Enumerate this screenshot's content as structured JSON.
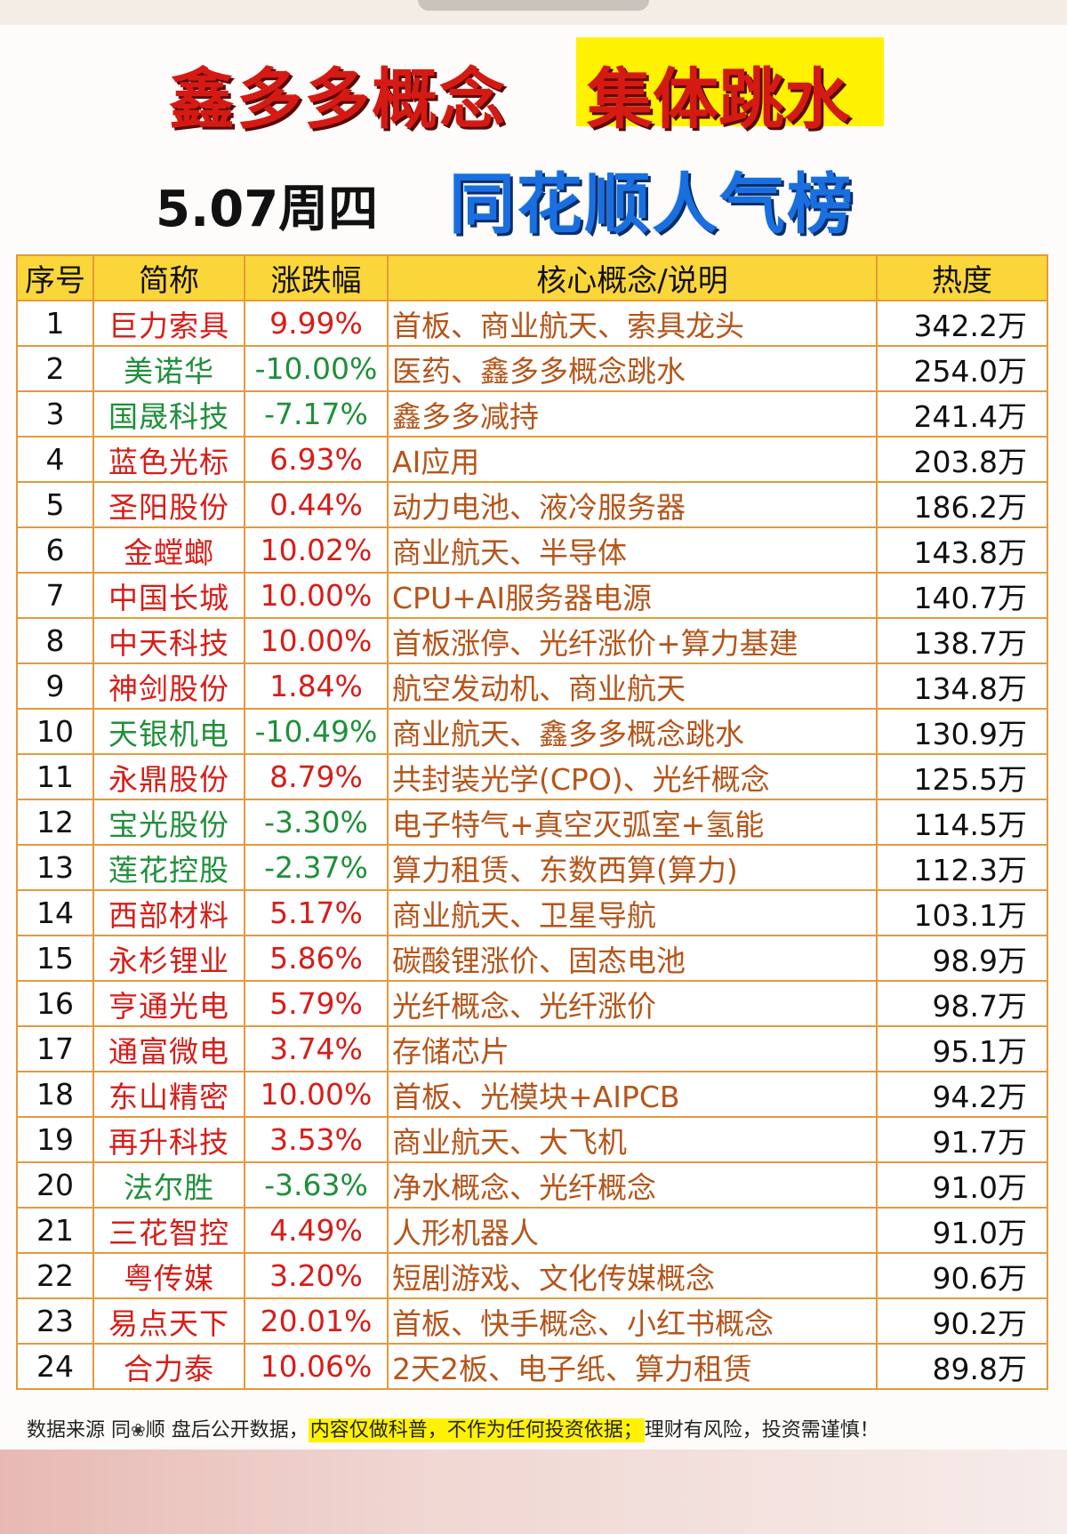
{
  "title": {
    "part1": "鑫多多概念",
    "part2": "集体跳水",
    "date": "5.07周四",
    "board": "同花顺人气榜"
  },
  "table": {
    "headers": [
      "序号",
      "简称",
      "涨跌幅",
      "核心概念/说明",
      "热度"
    ],
    "rows": [
      {
        "rank": "1",
        "name": "巨力索具",
        "change": "9.99%",
        "up": true,
        "desc": "首板、商业航天、索具龙头",
        "heat": "342.2万"
      },
      {
        "rank": "2",
        "name": "美诺华",
        "change": "-10.00%",
        "up": false,
        "desc": "医药、鑫多多概念跳水",
        "heat": "254.0万"
      },
      {
        "rank": "3",
        "name": "国晟科技",
        "change": "-7.17%",
        "up": false,
        "desc": "鑫多多减持",
        "heat": "241.4万"
      },
      {
        "rank": "4",
        "name": "蓝色光标",
        "change": "6.93%",
        "up": true,
        "desc": "AI应用",
        "heat": "203.8万"
      },
      {
        "rank": "5",
        "name": "圣阳股份",
        "change": "0.44%",
        "up": true,
        "desc": "动力电池、液冷服务器",
        "heat": "186.2万"
      },
      {
        "rank": "6",
        "name": "金螳螂",
        "change": "10.02%",
        "up": true,
        "desc": "商业航天、半导体",
        "heat": "143.8万"
      },
      {
        "rank": "7",
        "name": "中国长城",
        "change": "10.00%",
        "up": true,
        "desc": "CPU+AI服务器电源",
        "heat": "140.7万"
      },
      {
        "rank": "8",
        "name": "中天科技",
        "change": "10.00%",
        "up": true,
        "desc": "首板涨停、光纤涨价+算力基建",
        "heat": "138.7万"
      },
      {
        "rank": "9",
        "name": "神剑股份",
        "change": "1.84%",
        "up": true,
        "desc": "航空发动机、商业航天",
        "heat": "134.8万"
      },
      {
        "rank": "10",
        "name": "天银机电",
        "change": "-10.49%",
        "up": false,
        "desc": "商业航天、鑫多多概念跳水",
        "heat": "130.9万"
      },
      {
        "rank": "11",
        "name": "永鼎股份",
        "change": "8.79%",
        "up": true,
        "desc": "共封装光学(CPO)、光纤概念",
        "heat": "125.5万"
      },
      {
        "rank": "12",
        "name": "宝光股份",
        "change": "-3.30%",
        "up": false,
        "desc": "电子特气+真空灭弧室+氢能",
        "heat": "114.5万"
      },
      {
        "rank": "13",
        "name": "莲花控股",
        "change": "-2.37%",
        "up": false,
        "desc": "算力租赁、东数西算(算力)",
        "heat": "112.3万"
      },
      {
        "rank": "14",
        "name": "西部材料",
        "change": "5.17%",
        "up": true,
        "desc": "商业航天、卫星导航",
        "heat": "103.1万"
      },
      {
        "rank": "15",
        "name": "永杉锂业",
        "change": "5.86%",
        "up": true,
        "desc": "碳酸锂涨价、固态电池",
        "heat": "98.9万"
      },
      {
        "rank": "16",
        "name": "亨通光电",
        "change": "5.79%",
        "up": true,
        "desc": "光纤概念、光纤涨价",
        "heat": "98.7万"
      },
      {
        "rank": "17",
        "name": "通富微电",
        "change": "3.74%",
        "up": true,
        "desc": "存储芯片",
        "heat": "95.1万"
      },
      {
        "rank": "18",
        "name": "东山精密",
        "change": "10.00%",
        "up": true,
        "desc": "首板、光模块+AIPCB",
        "heat": "94.2万"
      },
      {
        "rank": "19",
        "name": "再升科技",
        "change": "3.53%",
        "up": true,
        "desc": "商业航天、大飞机",
        "heat": "91.7万"
      },
      {
        "rank": "20",
        "name": "法尔胜",
        "change": "-3.63%",
        "up": false,
        "desc": "净水概念、光纤概念",
        "heat": "91.0万"
      },
      {
        "rank": "21",
        "name": "三花智控",
        "change": "4.49%",
        "up": true,
        "desc": "人形机器人",
        "heat": "91.0万"
      },
      {
        "rank": "22",
        "name": "粤传媒",
        "change": "3.20%",
        "up": true,
        "desc": "短剧游戏、文化传媒概念",
        "heat": "90.6万"
      },
      {
        "rank": "23",
        "name": "易点天下",
        "change": "20.01%",
        "up": true,
        "desc": "首板、快手概念、小红书概念",
        "heat": "90.2万"
      },
      {
        "rank": "24",
        "name": "合力泰",
        "change": "10.06%",
        "up": true,
        "desc": "2天2板、电子纸、算力租赁",
        "heat": "89.8万"
      }
    ]
  },
  "footer": {
    "source_prefix": "数据来源 同",
    "source_suffix": "顺 盘后公开数据，",
    "highlight": "内容仅做科普，不作为任何投资依据；",
    "warning": "理财有风险，投资需谨慎！"
  },
  "colors": {
    "up": "#d71d18",
    "down": "#1f8f3a",
    "desc": "#b5551a",
    "header_bg": "#fbd63a",
    "border": "#e39a3c",
    "title_blue": "#1a6fe0",
    "title_red": "#d51a14",
    "highlight": "#fff200"
  }
}
